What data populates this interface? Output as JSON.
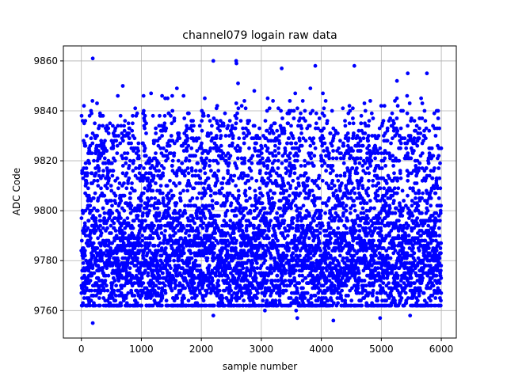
{
  "chart_data": {
    "type": "scatter",
    "title": "channel079 logain raw data",
    "xlabel": "sample number",
    "ylabel": "ADC Code",
    "xlim": [
      -300,
      6250
    ],
    "ylim": [
      9749,
      9866
    ],
    "x_ticks": [
      0,
      1000,
      2000,
      3000,
      4000,
      5000,
      6000
    ],
    "y_ticks": [
      9760,
      9780,
      9800,
      9820,
      9840,
      9860
    ],
    "grid": true,
    "marker_color": "#0000ff",
    "n_points": 6000,
    "outliers": [
      {
        "x": 190,
        "y": 9861
      },
      {
        "x": 2200,
        "y": 9860
      },
      {
        "x": 2580,
        "y": 9860
      },
      {
        "x": 2585,
        "y": 9859
      },
      {
        "x": 3340,
        "y": 9857
      },
      {
        "x": 3900,
        "y": 9858
      },
      {
        "x": 4550,
        "y": 9858
      },
      {
        "x": 5440,
        "y": 9855
      },
      {
        "x": 5760,
        "y": 9855
      },
      {
        "x": 190,
        "y": 9755
      },
      {
        "x": 2200,
        "y": 9758
      },
      {
        "x": 3580,
        "y": 9760
      },
      {
        "x": 3600,
        "y": 9757
      },
      {
        "x": 4200,
        "y": 9756
      },
      {
        "x": 4980,
        "y": 9757
      },
      {
        "x": 5480,
        "y": 9758
      },
      {
        "x": 3060,
        "y": 9760
      }
    ]
  }
}
